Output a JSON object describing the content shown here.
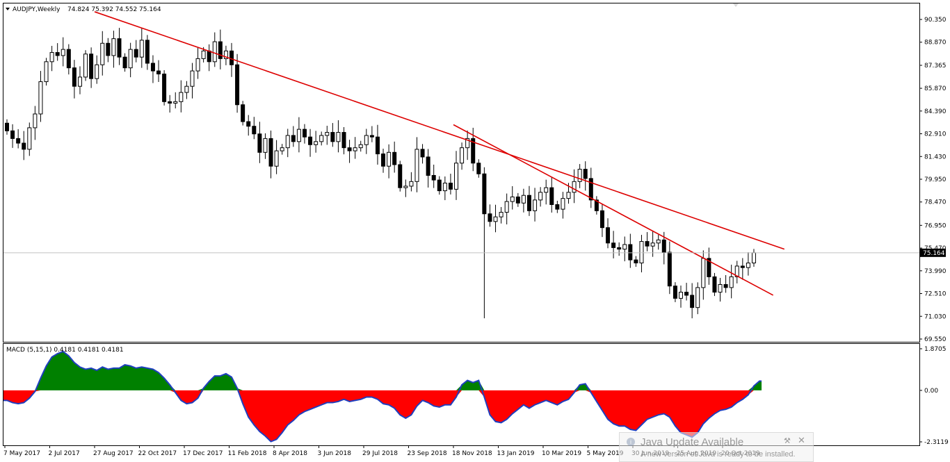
{
  "header": {
    "symbol": "AUDJPY,Weekly",
    "ohlc": "74.824 75.392 74.552 75.164"
  },
  "macd_label": "MACD (5,15,1) 0.4181 0.4181 0.4181",
  "price_tag": "75.164",
  "toast": {
    "title": "Java Update Available",
    "body": "A new version of Java is ready to be installed."
  },
  "chart_data": [
    {
      "type": "candlestick",
      "title": "",
      "price_axis_ticks": [
        "90.350",
        "88.870",
        "87.365",
        "85.870",
        "84.390",
        "82.910",
        "81.430",
        "79.950",
        "78.470",
        "76.950",
        "75.470",
        "73.990",
        "72.510",
        "71.030",
        "69.550"
      ],
      "ylim": [
        69.55,
        90.35
      ],
      "current_price": 75.164,
      "x_tick_labels": [
        "7 May 2017",
        "2 Jul 2017",
        "27 Aug 2017",
        "22 Oct 2017",
        "17 Dec 2017",
        "11 Feb 2018",
        "8 Apr 2018",
        "3 Jun 2018",
        "29 Jul 2018",
        "23 Sep 2018",
        "18 Nov 2018",
        "13 Jan 2019",
        "10 Mar 2019",
        "5 May 2019",
        "30 Jun 2019",
        "25 Aug 2019",
        "20 Oct 2019"
      ],
      "closes": [
        83.1,
        82.6,
        82.3,
        81.9,
        83.3,
        84.2,
        86.3,
        87.6,
        88.2,
        88.0,
        88.4,
        87.2,
        86.0,
        86.6,
        88.1,
        86.5,
        87.4,
        88.8,
        88.0,
        89.1,
        87.9,
        87.2,
        88.4,
        87.9,
        89.0,
        87.5,
        87.0,
        86.8,
        85.0,
        84.9,
        85.0,
        85.6,
        86.0,
        87.0,
        87.8,
        88.3,
        87.6,
        88.9,
        87.8,
        88.3,
        87.4,
        84.8,
        83.7,
        83.4,
        82.9,
        81.7,
        82.6,
        80.8,
        81.8,
        82.0,
        82.8,
        82.4,
        83.2,
        82.7,
        82.2,
        82.4,
        82.8,
        83.0,
        82.4,
        83.0,
        82.0,
        81.8,
        82.0,
        82.2,
        82.8,
        82.7,
        81.6,
        80.8,
        81.7,
        80.9,
        79.4,
        79.5,
        79.8,
        81.9,
        81.4,
        80.2,
        79.9,
        79.2,
        79.7,
        79.3,
        81.0,
        82.0,
        82.6,
        81.0,
        80.3,
        77.7,
        77.2,
        77.5,
        77.8,
        78.5,
        78.8,
        78.4,
        78.9,
        77.9,
        78.6,
        79.1,
        79.4,
        78.3,
        78.0,
        78.7,
        79.1,
        79.8,
        80.6,
        80.0,
        78.6,
        77.9,
        76.8,
        75.8,
        75.5,
        75.4,
        75.7,
        74.7,
        74.5,
        75.9,
        75.6,
        75.8,
        76.0,
        75.2,
        73.0,
        72.2,
        72.6,
        72.4,
        71.6,
        72.9,
        74.8,
        73.6,
        72.6,
        73.1,
        72.9,
        73.6,
        74.3,
        74.2,
        74.5,
        75.164
      ],
      "trendlines": [
        {
          "from": [
            "27 Aug 2017",
            90.85
          ],
          "to": [
            "5 Jan 2020",
            75.4
          ]
        },
        {
          "from": [
            "18 Nov 2018",
            83.5
          ],
          "to": [
            "22 Dec 2019",
            72.4
          ]
        }
      ]
    },
    {
      "type": "area",
      "title": "MACD (5,15,1)",
      "y_axis_ticks": [
        "1.8705",
        "0.00",
        "-2.3119"
      ],
      "ylim": [
        -2.3119,
        1.8705
      ],
      "values": [
        -0.45,
        -0.55,
        -0.6,
        -0.55,
        -0.35,
        -0.05,
        0.55,
        1.1,
        1.5,
        1.65,
        1.75,
        1.55,
        1.25,
        1.05,
        0.95,
        1.0,
        0.9,
        1.05,
        0.95,
        1.0,
        1.0,
        1.15,
        1.1,
        1.0,
        1.05,
        1.0,
        0.95,
        0.8,
        0.55,
        0.25,
        -0.1,
        -0.45,
        -0.6,
        -0.55,
        -0.35,
        0.1,
        0.4,
        0.65,
        0.65,
        0.75,
        0.6,
        0.1,
        -0.6,
        -1.2,
        -1.55,
        -1.85,
        -2.05,
        -2.3,
        -2.2,
        -1.9,
        -1.55,
        -1.35,
        -1.1,
        -0.95,
        -0.85,
        -0.75,
        -0.65,
        -0.55,
        -0.55,
        -0.5,
        -0.4,
        -0.5,
        -0.45,
        -0.4,
        -0.3,
        -0.3,
        -0.4,
        -0.6,
        -0.65,
        -0.8,
        -1.1,
        -1.25,
        -1.1,
        -0.7,
        -0.45,
        -0.55,
        -0.7,
        -0.75,
        -0.65,
        -0.65,
        -0.3,
        0.25,
        0.45,
        0.35,
        0.45,
        -0.3,
        -1.1,
        -1.4,
        -1.45,
        -1.3,
        -1.05,
        -0.85,
        -0.65,
        -0.8,
        -0.65,
        -0.55,
        -0.45,
        -0.55,
        -0.65,
        -0.5,
        -0.4,
        -0.1,
        0.25,
        0.3,
        -0.1,
        -0.5,
        -0.9,
        -1.3,
        -1.5,
        -1.6,
        -1.6,
        -1.75,
        -1.8,
        -1.55,
        -1.3,
        -1.2,
        -1.1,
        -1.05,
        -1.2,
        -1.6,
        -1.9,
        -2.0,
        -2.1,
        -1.9,
        -1.5,
        -1.25,
        -1.05,
        -0.9,
        -0.85,
        -0.75,
        -0.55,
        -0.4,
        -0.2,
        0.2,
        0.4181
      ]
    }
  ]
}
